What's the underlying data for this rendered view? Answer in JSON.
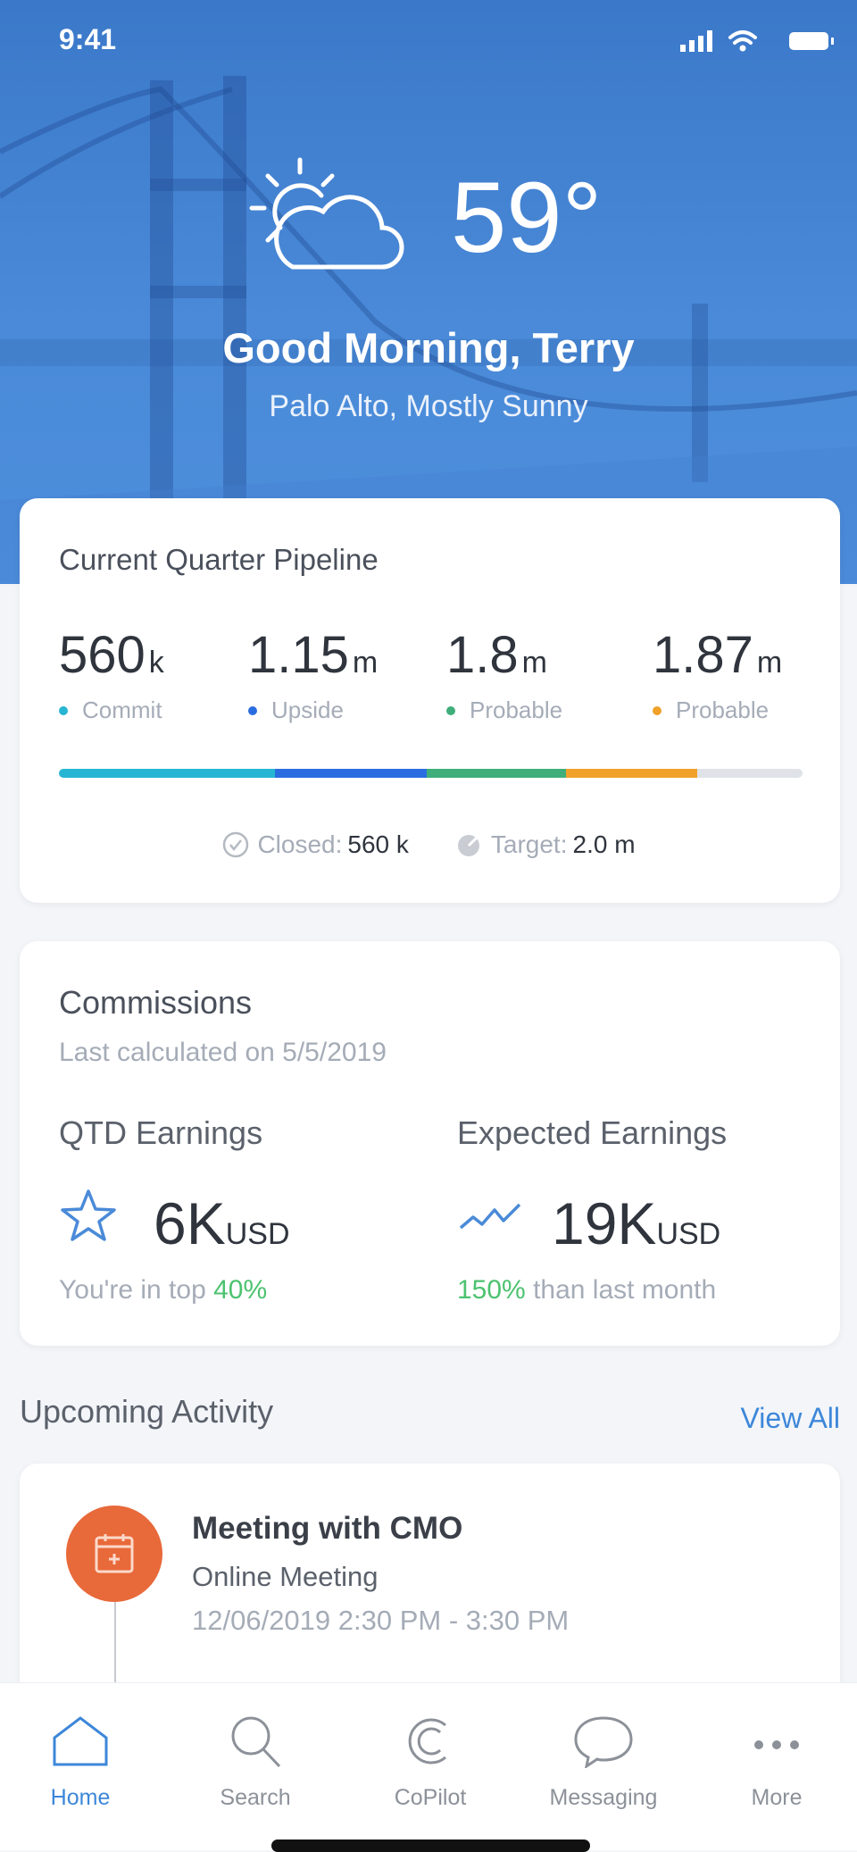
{
  "status_bar": {
    "time": "9:41"
  },
  "hero": {
    "temperature": "59°",
    "greeting": "Good Morning, Terry",
    "location": "Palo Alto, Mostly Sunny",
    "weather_icon": "partly-sunny-icon"
  },
  "pipeline": {
    "title": "Current Quarter Pipeline",
    "metrics": [
      {
        "value": "560",
        "unit": "k",
        "label": "Commit",
        "color": "#26b5d3"
      },
      {
        "value": "1.15",
        "unit": "m",
        "label": "Upside",
        "color": "#2a6de0"
      },
      {
        "value": "1.8",
        "unit": "m",
        "label": "Probable",
        "color": "#3fae7a"
      },
      {
        "value": "1.87",
        "unit": "m",
        "label": "Probable",
        "color": "#f0a12a"
      }
    ],
    "bar_segments_percent": [
      29,
      20.5,
      18.7,
      17.6
    ],
    "remaining_color": "#dfe2e7",
    "closed_label": "Closed:",
    "closed_value": "560 k",
    "target_label": "Target:",
    "target_value": "2.0 m"
  },
  "commissions": {
    "title": "Commissions",
    "subtitle": "Last calculated on 5/5/2019",
    "qtd": {
      "label": "QTD Earnings",
      "value": "6K",
      "unit": "USD",
      "note_prefix": "You're in top ",
      "note_highlight": "40%"
    },
    "expected": {
      "label": "Expected Earnings",
      "value": "19K",
      "unit": "USD",
      "note_highlight": "150%",
      "note_suffix": " than last month"
    }
  },
  "activity": {
    "title": "Upcoming Activity",
    "view_all": "View All",
    "items": [
      {
        "title": "Meeting with CMO",
        "type": "Online Meeting",
        "time": "12/06/2019 2:30 PM - 3:30 PM"
      }
    ]
  },
  "tabbar": [
    {
      "label": "Home",
      "icon": "home-icon",
      "active": true
    },
    {
      "label": "Search",
      "icon": "search-icon"
    },
    {
      "label": "CoPilot",
      "icon": "copilot-icon"
    },
    {
      "label": "Messaging",
      "icon": "chat-bubble-icon"
    },
    {
      "label": "More",
      "icon": "more-icon"
    }
  ]
}
